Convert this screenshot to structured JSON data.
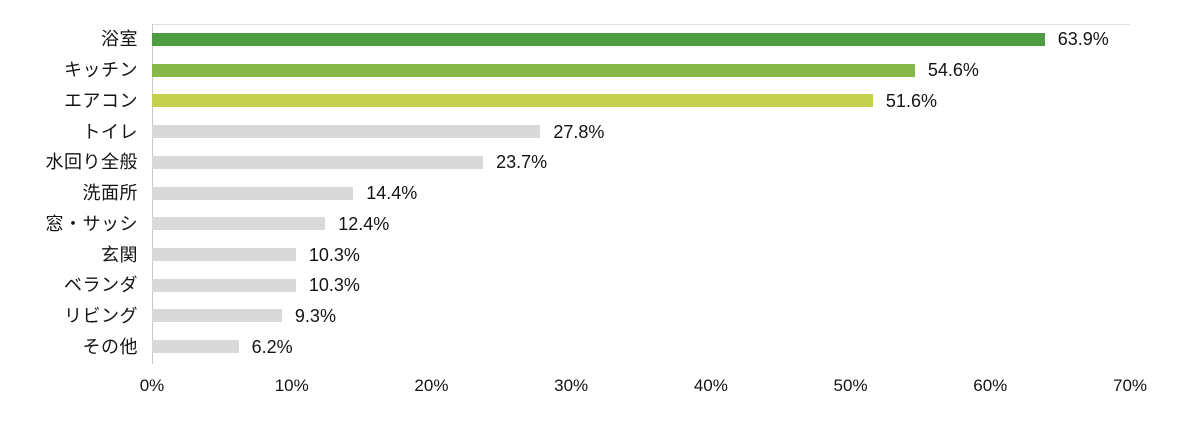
{
  "chart_data": {
    "type": "bar",
    "orientation": "horizontal",
    "categories": [
      "浴室",
      "キッチン",
      "エアコン",
      "トイレ",
      "水回り全般",
      "洗面所",
      "窓・サッシ",
      "玄関",
      "ベランダ",
      "リビング",
      "その他"
    ],
    "values": [
      63.9,
      54.6,
      51.6,
      27.8,
      23.7,
      14.4,
      12.4,
      10.3,
      10.3,
      9.3,
      6.2
    ],
    "value_labels": [
      "63.9%",
      "54.6%",
      "51.6%",
      "27.8%",
      "23.7%",
      "14.4%",
      "12.4%",
      "10.3%",
      "10.3%",
      "9.3%",
      "6.2%"
    ],
    "bar_colors": [
      "#4e9b43",
      "#86b94a",
      "#c3d04e",
      "#d9d9d9",
      "#d9d9d9",
      "#d9d9d9",
      "#d9d9d9",
      "#d9d9d9",
      "#d9d9d9",
      "#d9d9d9",
      "#d9d9d9"
    ],
    "x_ticks": [
      "0%",
      "10%",
      "20%",
      "30%",
      "40%",
      "50%",
      "60%",
      "70%"
    ],
    "xlim": [
      0,
      70
    ],
    "grid": false,
    "legend": "none",
    "accent_colors": {
      "green_dark": "#4e9b43",
      "green_mid": "#86b94a",
      "green_light": "#c3d04e",
      "bar_gray": "#d9d9d9",
      "axis_line": "#c9c9c9",
      "plot_top_border": "#dfdfdf",
      "text": "#141414"
    }
  }
}
